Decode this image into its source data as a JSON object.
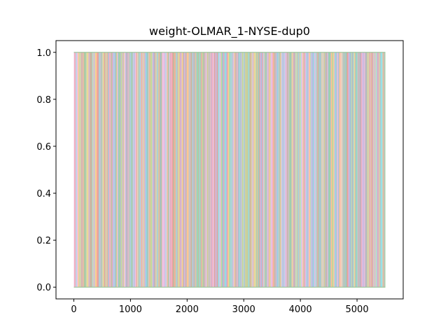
{
  "chart_data": {
    "type": "area",
    "title": "weight-OLMAR_1-NYSE-dup0",
    "xlabel": "",
    "ylabel": "",
    "xlim": [
      -315,
      5815
    ],
    "ylim": [
      -0.05,
      1.05
    ],
    "x_ticks": [
      0,
      1000,
      2000,
      3000,
      4000,
      5000
    ],
    "x_tick_labels": [
      "0",
      "1000",
      "2000",
      "3000",
      "4000",
      "5000"
    ],
    "y_ticks": [
      0.0,
      0.2,
      0.4,
      0.6,
      0.8,
      1.0
    ],
    "y_tick_labels": [
      "0.0",
      "0.2",
      "0.4",
      "0.6",
      "0.8",
      "1.0"
    ],
    "x_range": [
      0,
      5500
    ],
    "stacked_total": 1.0,
    "n_steps": 5500,
    "grid": false,
    "legend": "none",
    "palette": [
      "#1f77b4",
      "#ff7f0e",
      "#2ca02c",
      "#d62728",
      "#9467bd",
      "#8c564b",
      "#e377c2",
      "#7f7f7f",
      "#bcbd22",
      "#17becf"
    ],
    "fill_alpha": 0.45
  }
}
